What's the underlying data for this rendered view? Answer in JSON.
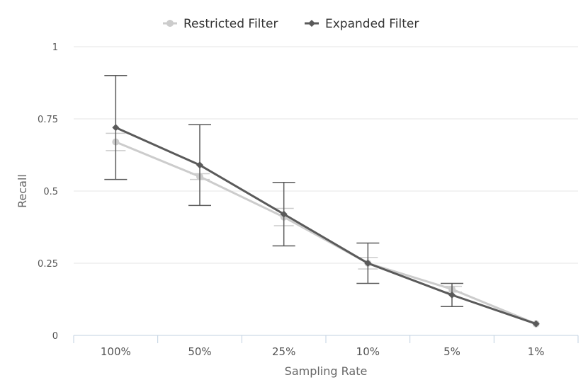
{
  "chart_data": {
    "type": "line",
    "title": "",
    "xlabel": "Sampling Rate",
    "ylabel": "Recall",
    "categories": [
      "100%",
      "50%",
      "25%",
      "10%",
      "5%",
      "1%"
    ],
    "ylim": [
      0,
      1
    ],
    "yticks": [
      0,
      0.25,
      0.5,
      0.75,
      1
    ],
    "ytick_labels": [
      "0",
      "0.25",
      "0.5",
      "0.75",
      "1"
    ],
    "grid": true,
    "legend_position": "top-center",
    "series": [
      {
        "name": "Restricted Filter",
        "marker": "circle",
        "color": "#cccccc",
        "values": [
          0.67,
          0.55,
          0.41,
          0.25,
          0.16,
          0.04
        ],
        "error_low": [
          0.64,
          0.54,
          0.38,
          0.23,
          0.15,
          0.04
        ],
        "error_high": [
          0.7,
          0.56,
          0.44,
          0.27,
          0.17,
          0.04
        ]
      },
      {
        "name": "Expanded Filter",
        "marker": "diamond",
        "color": "#5a5a5a",
        "values": [
          0.72,
          0.59,
          0.42,
          0.25,
          0.14,
          0.04
        ],
        "error_low": [
          0.54,
          0.45,
          0.31,
          0.18,
          0.1,
          0.04
        ],
        "error_high": [
          0.9,
          0.73,
          0.53,
          0.32,
          0.18,
          0.04
        ]
      }
    ]
  }
}
